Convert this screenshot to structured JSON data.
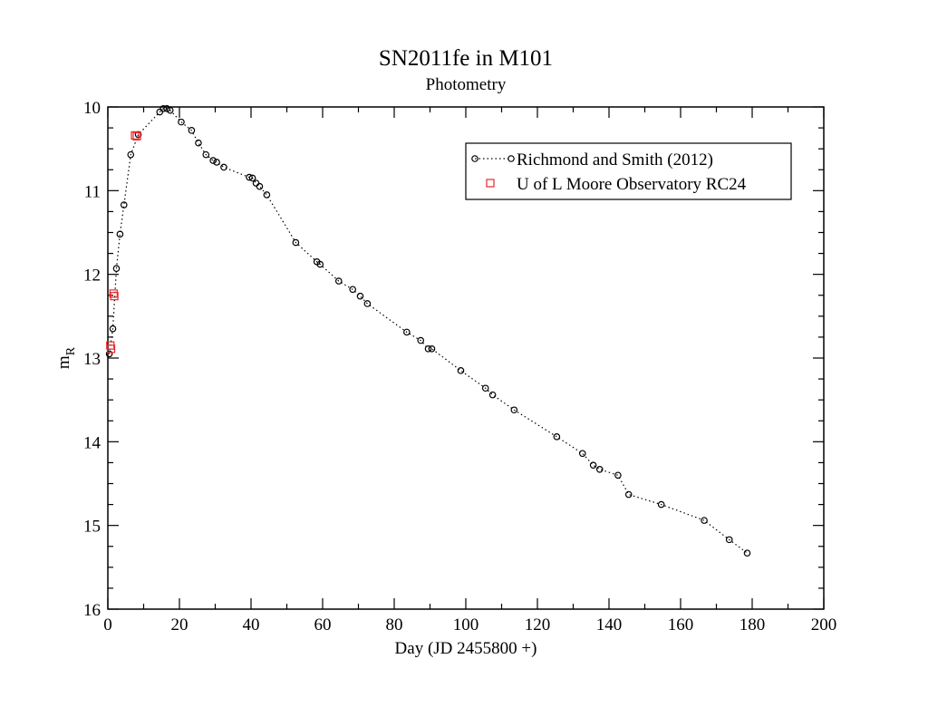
{
  "chart_data": {
    "type": "scatter",
    "title": "SN2011fe in M101",
    "subtitle": "Photometry",
    "xlabel": "Day (JD 2455800 +)",
    "ylabel_main": "m",
    "ylabel_sub": "R",
    "xlim": [
      0,
      200
    ],
    "ylim": [
      10,
      16
    ],
    "y_inverted": true,
    "x_ticks": [
      "0",
      "20",
      "40",
      "60",
      "80",
      "100",
      "120",
      "140",
      "160",
      "180",
      "200"
    ],
    "y_ticks": [
      "10",
      "11",
      "12",
      "13",
      "14",
      "15",
      "16"
    ],
    "grid": false,
    "legend_position": "top-right",
    "series": [
      {
        "name": "Richmond and Smith (2012)",
        "marker": "circle",
        "line": "dotted",
        "color": "#000000",
        "x": [
          0.4,
          1.4,
          2.4,
          3.4,
          4.5,
          6.4,
          8.5,
          14.5,
          15.5,
          16.5,
          17.4,
          20.5,
          23.4,
          25.3,
          27.4,
          29.4,
          30.4,
          32.4,
          39.5,
          40.4,
          41.4,
          42.4,
          44.4,
          52.5,
          58.4,
          59.3,
          64.5,
          68.4,
          70.5,
          72.5,
          83.5,
          87.4,
          89.5,
          90.5,
          98.6,
          105.5,
          107.5,
          113.5,
          125.4,
          132.6,
          135.6,
          137.4,
          142.5,
          145.5,
          154.6,
          166.6,
          173.6,
          178.6
        ],
        "y": [
          12.95,
          12.65,
          11.93,
          11.52,
          11.17,
          10.57,
          10.33,
          10.06,
          10.02,
          10.02,
          10.04,
          10.18,
          10.28,
          10.43,
          10.57,
          10.64,
          10.66,
          10.72,
          10.84,
          10.85,
          10.91,
          10.95,
          11.05,
          11.62,
          11.85,
          11.88,
          12.08,
          12.18,
          12.26,
          12.35,
          12.69,
          12.79,
          12.89,
          12.89,
          13.15,
          13.36,
          13.44,
          13.62,
          13.94,
          14.14,
          14.28,
          14.33,
          14.4,
          14.63,
          14.75,
          14.94,
          15.17,
          15.33
        ]
      },
      {
        "name": "U of L Moore Observatory RC24",
        "marker": "square",
        "line": "none",
        "color": "#e8262a",
        "x": [
          0.7,
          0.9,
          1.6,
          1.8,
          7.6,
          8.1
        ],
        "y": [
          12.85,
          12.89,
          12.23,
          12.26,
          10.34,
          10.35
        ]
      }
    ]
  }
}
